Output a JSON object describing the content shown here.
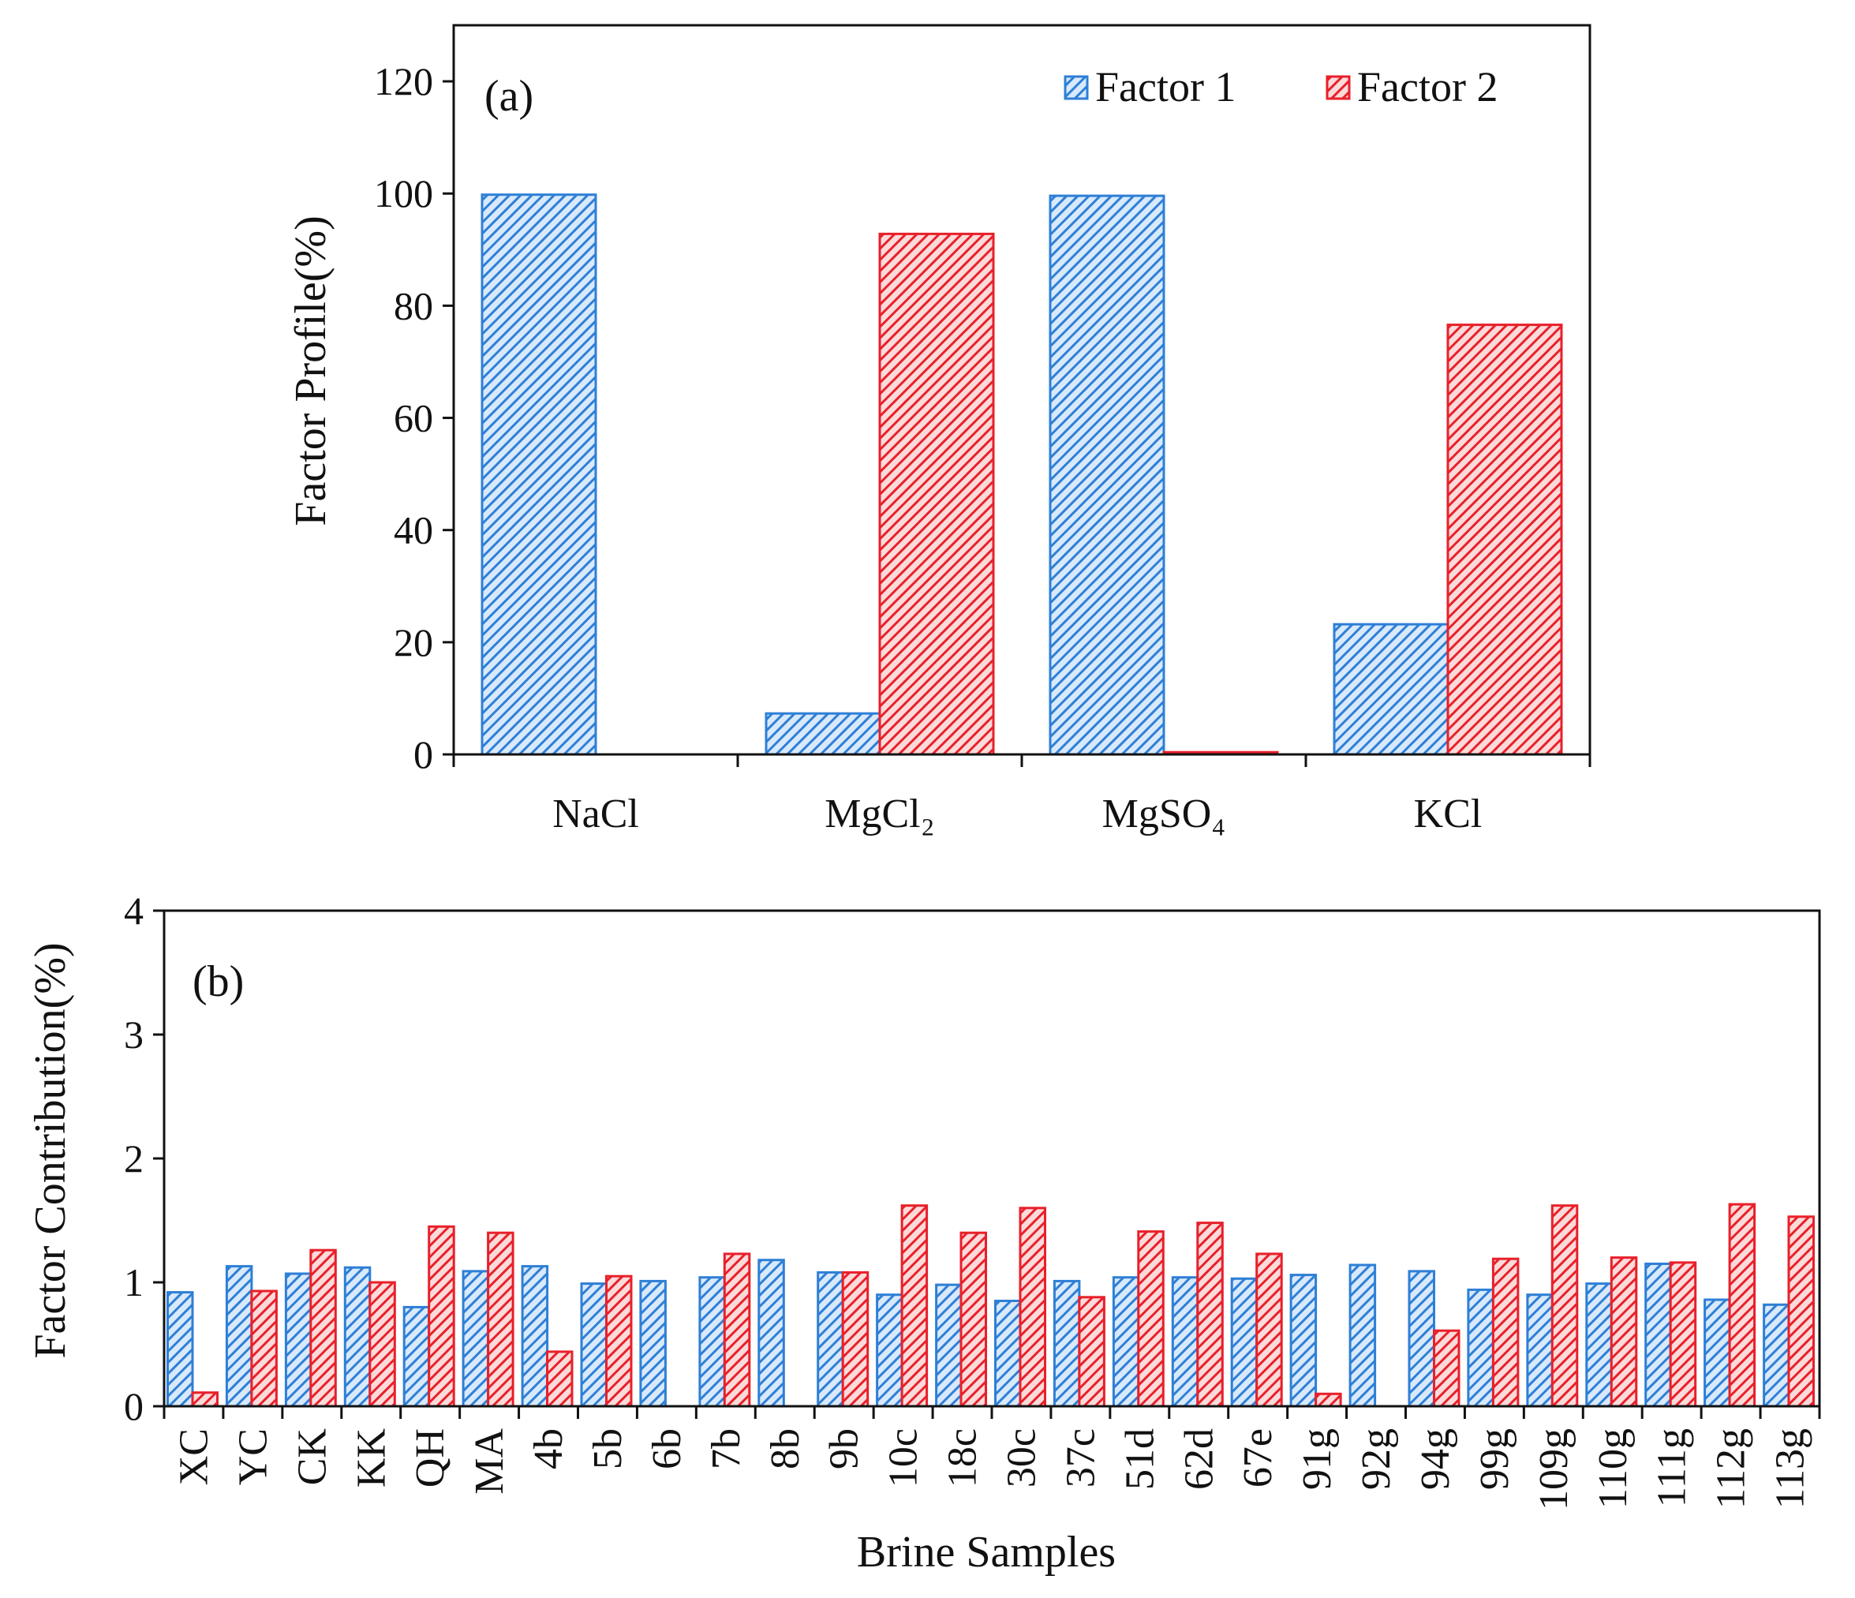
{
  "chart_data": [
    {
      "type": "bar",
      "panel_label": "(a)",
      "title": "",
      "xlabel": "",
      "ylabel": "Factor Profile(%)",
      "ylim": [
        0,
        130
      ],
      "yticks": [
        0,
        20,
        40,
        60,
        80,
        100,
        120
      ],
      "ytick_labels": [
        "0",
        "20",
        "40",
        "60",
        "80",
        "100",
        "120"
      ],
      "grid": false,
      "legend_position": "top-right",
      "categories": [
        "NaCl",
        "MgCl₂",
        "MgSO₄",
        "KCl"
      ],
      "series": [
        {
          "name": "Factor 1",
          "color": "#2e7fd6",
          "values": [
            99.8,
            7.3,
            99.6,
            23.2
          ]
        },
        {
          "name": "Factor 2",
          "color": "#e8202a",
          "values": [
            0.0,
            92.8,
            0.4,
            76.6
          ]
        }
      ]
    },
    {
      "type": "bar",
      "panel_label": "(b)",
      "title": "",
      "xlabel": "Brine Samples",
      "ylabel": "Factor Contribution(%)",
      "ylim": [
        0,
        4
      ],
      "yticks": [
        0,
        1,
        2,
        3,
        4
      ],
      "ytick_labels": [
        "0",
        "1",
        "2",
        "3",
        "4"
      ],
      "grid": false,
      "categories": [
        "XC",
        "YC",
        "CK",
        "KK",
        "QH",
        "MA",
        "4b",
        "5b",
        "6b",
        "7b",
        "8b",
        "9b",
        "10c",
        "18c",
        "30c",
        "37c",
        "51d",
        "62d",
        "67e",
        "91g",
        "92g",
        "94g",
        "99g",
        "109g",
        "110g",
        "111g",
        "112g",
        "113g"
      ],
      "series": [
        {
          "name": "Factor 1",
          "color": "#2e7fd6",
          "values": [
            0.92,
            1.13,
            1.07,
            1.12,
            0.8,
            1.09,
            1.13,
            0.99,
            1.01,
            1.04,
            1.18,
            1.08,
            0.9,
            0.98,
            0.85,
            1.01,
            1.04,
            1.04,
            1.03,
            1.06,
            1.14,
            1.09,
            0.94,
            0.9,
            0.99,
            1.15,
            0.86,
            0.82
          ]
        },
        {
          "name": "Factor 2",
          "color": "#e8202a",
          "values": [
            0.11,
            0.93,
            1.26,
            1.0,
            1.45,
            1.4,
            0.44,
            1.05,
            0.0,
            1.23,
            0.0,
            1.08,
            1.62,
            1.4,
            1.6,
            0.88,
            1.41,
            1.48,
            1.23,
            0.1,
            0.0,
            0.61,
            1.19,
            1.62,
            1.2,
            1.16,
            1.63,
            1.53
          ]
        }
      ]
    }
  ]
}
